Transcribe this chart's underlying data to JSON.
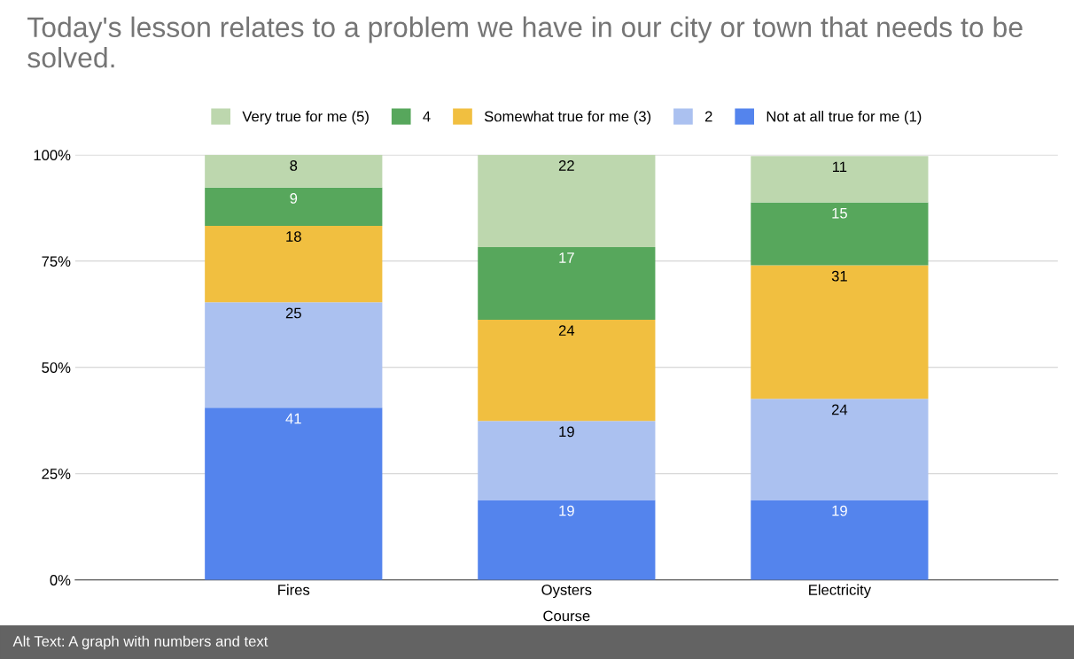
{
  "chart_data": {
    "type": "bar",
    "stacked": true,
    "title": "Today's lesson relates to a problem we have in our city or town that needs to be solved.",
    "xlabel": "Course",
    "categories": [
      "Fires",
      "Oysters",
      "Electricity"
    ],
    "series": [
      {
        "name": "Not at all true for me (1)",
        "color": "#5484ed",
        "values": [
          40.5,
          18.8,
          18.8
        ],
        "value_labels": [
          "41",
          "19",
          "19"
        ]
      },
      {
        "name": "2",
        "color": "#abc1f0",
        "values": [
          24.8,
          18.6,
          23.8
        ],
        "value_labels": [
          "25",
          "19",
          "24"
        ]
      },
      {
        "name": "Somewhat true for me (3)",
        "color": "#f1bf40",
        "values": [
          18.0,
          23.8,
          31.4
        ],
        "value_labels": [
          "18",
          "24",
          "31"
        ]
      },
      {
        "name": "4",
        "color": "#57a75c",
        "values": [
          9.0,
          17.1,
          14.8
        ],
        "value_labels": [
          "9",
          "17",
          "15"
        ]
      },
      {
        "name": "Very true for me (5)",
        "color": "#bdd7ae",
        "values": [
          7.7,
          21.7,
          10.9
        ],
        "value_labels": [
          "8",
          "22",
          "11"
        ]
      }
    ],
    "ylim": [
      0,
      100
    ],
    "yticks": [
      {
        "value": 0,
        "label": "0%"
      },
      {
        "value": 25,
        "label": "25%"
      },
      {
        "value": 50,
        "label": "50%"
      },
      {
        "value": 75,
        "label": "75%"
      },
      {
        "value": 100,
        "label": "100%"
      }
    ],
    "grid": "y",
    "legend": "top",
    "annotations": [
      "Alt Text: A graph with numbers and text"
    ]
  }
}
